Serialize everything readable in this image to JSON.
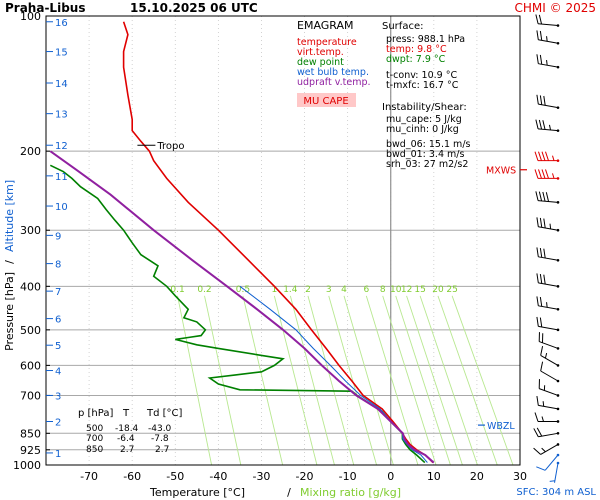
{
  "chart_data": {
    "type": "line",
    "station": "Praha-Libus",
    "date": "15.10.2025 06 UTC",
    "credit": "CHMI © 2025",
    "diagram_label": "EMAGRAM",
    "xlabel_temp": "Temperature [°C]",
    "xlabel_sep": "/",
    "xlabel_mix": "Mixing ratio [g/kg]",
    "ylabel_p": "Pressure [hPa]",
    "ylabel_sep": "/",
    "ylabel_alt": "Altitude [km]",
    "sfc_label": "SFC: 304 m ASL",
    "x_range": [
      -80,
      30
    ],
    "y_range": [
      100,
      1000
    ],
    "x_ticks": [
      -70,
      -60,
      -50,
      -40,
      -30,
      -20,
      -10,
      0,
      10,
      20,
      30
    ],
    "pressure_ticks": [
      100,
      200,
      300,
      400,
      500,
      600,
      700,
      850,
      925,
      1000
    ],
    "pressure_gridlines": [
      200,
      300,
      400,
      500,
      600,
      700,
      850,
      925
    ],
    "altitude_ticks": [
      {
        "km": "1",
        "p": 940
      },
      {
        "km": "2",
        "p": 800
      },
      {
        "km": "3",
        "p": 700
      },
      {
        "km": "4",
        "p": 616
      },
      {
        "km": "5",
        "p": 541
      },
      {
        "km": "6",
        "p": 472
      },
      {
        "km": "7",
        "p": 410
      },
      {
        "km": "8",
        "p": 356
      },
      {
        "km": "9",
        "p": 308
      },
      {
        "km": "10",
        "p": 265
      },
      {
        "km": "11",
        "p": 227
      },
      {
        "km": "12",
        "p": 194
      },
      {
        "km": "13",
        "p": 165
      },
      {
        "km": "14",
        "p": 141
      },
      {
        "km": "15",
        "p": 120
      },
      {
        "km": "16",
        "p": 103
      }
    ],
    "mixing_ratio_labels": [
      "0.1",
      "0.2",
      "0.5",
      "1",
      "1.4",
      "2",
      "3",
      "4",
      "6",
      "8",
      "10",
      "12",
      "15",
      "20",
      "25"
    ],
    "mixing_ratio_values": [
      0.1,
      0.2,
      0.5,
      1,
      1.4,
      2,
      3,
      4,
      6,
      8,
      10,
      12,
      15,
      20,
      25
    ],
    "legend": [
      {
        "label": "temperature",
        "color": "#e00000"
      },
      {
        "label": "virt.temp.",
        "color": "#e00000"
      },
      {
        "label": "dew point",
        "color": "#008000"
      },
      {
        "label": "wet bulb temp.",
        "color": "#1060d0"
      },
      {
        "label": "udpraft v.temp.",
        "color": "#9020a0"
      }
    ],
    "mu_cape_tag": "MU CAPE",
    "surface": {
      "title": "Surface:",
      "lines": [
        {
          "text": "press: 988.1 hPa",
          "color": "#000000"
        },
        {
          "text": "temp: 9.8 °C",
          "color": "#e00000"
        },
        {
          "text": "dwpt: 7.9 °C",
          "color": "#008000"
        }
      ],
      "tconv": "t-conv: 10.9 °C",
      "tmxfc": "t-mxfc: 16.7 °C"
    },
    "instability": {
      "title": "Instability/Shear:",
      "lines": [
        "mu_cape: 5 J/kg",
        "mu_cinh: 0 J/kg",
        "bwd_06: 15.1 m/s",
        "bwd_01: 3.4 m/s",
        "srh_03: 27 m2/s2"
      ]
    },
    "table": {
      "headers": [
        "p [hPa]",
        "T",
        "Td [°C]"
      ],
      "rows": [
        [
          "500",
          "-18.4",
          "-43.0"
        ],
        [
          "700",
          "-6.4",
          "-7.8"
        ],
        [
          "850",
          "2.7",
          "2.7"
        ]
      ]
    },
    "tropo_label": "Tropo",
    "tropo_p": 194,
    "tropo_t": -56,
    "mxws_label": "MXWS",
    "mxws_p": 220,
    "wbzl_label": "WBZL",
    "wbzl_p": 815,
    "series": [
      {
        "name": "temperature",
        "color": "#e00000",
        "points": [
          [
            9.8,
            988
          ],
          [
            8,
            950
          ],
          [
            6,
            925
          ],
          [
            4.5,
            900
          ],
          [
            3.5,
            875
          ],
          [
            2.7,
            850
          ],
          [
            0.5,
            800
          ],
          [
            -2,
            750
          ],
          [
            -6.4,
            700
          ],
          [
            -9,
            650
          ],
          [
            -12,
            600
          ],
          [
            -15,
            550
          ],
          [
            -18.4,
            500
          ],
          [
            -22,
            450
          ],
          [
            -27,
            400
          ],
          [
            -33,
            350
          ],
          [
            -40,
            300
          ],
          [
            -47,
            260
          ],
          [
            -52,
            230
          ],
          [
            -55,
            210
          ],
          [
            -56,
            200
          ],
          [
            -58,
            190
          ],
          [
            -60,
            180
          ],
          [
            -60,
            170
          ],
          [
            -61,
            150
          ],
          [
            -62,
            130
          ],
          [
            -62,
            120
          ],
          [
            -61,
            110
          ],
          [
            -62,
            103
          ]
        ]
      },
      {
        "name": "dew point",
        "color": "#008000",
        "points": [
          [
            7.9,
            988
          ],
          [
            6,
            950
          ],
          [
            4.5,
            925
          ],
          [
            3.5,
            900
          ],
          [
            2.7,
            875
          ],
          [
            2.7,
            850
          ],
          [
            0,
            800
          ],
          [
            -2,
            760
          ],
          [
            -7.8,
            700
          ],
          [
            -9,
            685
          ],
          [
            -35,
            680
          ],
          [
            -40,
            660
          ],
          [
            -42,
            640
          ],
          [
            -36,
            630
          ],
          [
            -30,
            620
          ],
          [
            -27,
            600
          ],
          [
            -25,
            580
          ],
          [
            -30,
            570
          ],
          [
            -40,
            550
          ],
          [
            -45,
            540
          ],
          [
            -50,
            525
          ],
          [
            -47,
            520
          ],
          [
            -44,
            515
          ],
          [
            -43,
            500
          ],
          [
            -45,
            480
          ],
          [
            -48,
            470
          ],
          [
            -47,
            450
          ],
          [
            -50,
            420
          ],
          [
            -52,
            400
          ],
          [
            -55,
            380
          ],
          [
            -54,
            360
          ],
          [
            -58,
            340
          ],
          [
            -60,
            320
          ],
          [
            -62,
            300
          ],
          [
            -64,
            285
          ],
          [
            -66,
            270
          ],
          [
            -68,
            255
          ],
          [
            -72,
            240
          ],
          [
            -74,
            230
          ],
          [
            -76,
            222
          ],
          [
            -79,
            215
          ]
        ]
      },
      {
        "name": "wet bulb temp.",
        "color": "#1060d0",
        "points": [
          [
            8.5,
            988
          ],
          [
            7,
            950
          ],
          [
            5,
            925
          ],
          [
            3.8,
            900
          ],
          [
            2.8,
            875
          ],
          [
            2.7,
            850
          ],
          [
            0,
            800
          ],
          [
            -2.5,
            750
          ],
          [
            -7,
            700
          ],
          [
            -10.5,
            650
          ],
          [
            -14,
            600
          ],
          [
            -18,
            550
          ],
          [
            -22,
            500
          ],
          [
            -28,
            450
          ],
          [
            -35,
            400
          ]
        ]
      },
      {
        "name": "udpraft v.temp.",
        "color": "#9020a0",
        "points": [
          [
            10,
            988
          ],
          [
            8,
            950
          ],
          [
            5.5,
            925
          ],
          [
            4,
            900
          ],
          [
            3.2,
            875
          ],
          [
            2.8,
            850
          ],
          [
            0,
            800
          ],
          [
            -3,
            750
          ],
          [
            -8,
            700
          ],
          [
            -12,
            650
          ],
          [
            -16,
            600
          ],
          [
            -20,
            550
          ],
          [
            -25,
            500
          ],
          [
            -31,
            450
          ],
          [
            -38,
            400
          ],
          [
            -46,
            350
          ],
          [
            -55,
            300
          ],
          [
            -65,
            250
          ],
          [
            -73,
            220
          ],
          [
            -79,
            200
          ]
        ]
      }
    ],
    "wind_barbs": [
      {
        "p": 990,
        "dir": 190,
        "speed_kt": 5
      },
      {
        "p": 950,
        "dir": 220,
        "speed_kt": 10
      },
      {
        "p": 900,
        "dir": 240,
        "speed_kt": 15
      },
      {
        "p": 850,
        "dir": 260,
        "speed_kt": 20
      },
      {
        "p": 800,
        "dir": 270,
        "speed_kt": 15
      },
      {
        "p": 750,
        "dir": 280,
        "speed_kt": 15
      },
      {
        "p": 700,
        "dir": 290,
        "speed_kt": 15
      },
      {
        "p": 650,
        "dir": 300,
        "speed_kt": 10
      },
      {
        "p": 600,
        "dir": 300,
        "speed_kt": 15
      },
      {
        "p": 550,
        "dir": 290,
        "speed_kt": 20
      },
      {
        "p": 500,
        "dir": 280,
        "speed_kt": 20
      },
      {
        "p": 450,
        "dir": 280,
        "speed_kt": 25
      },
      {
        "p": 400,
        "dir": 280,
        "speed_kt": 30
      },
      {
        "p": 350,
        "dir": 280,
        "speed_kt": 30
      },
      {
        "p": 300,
        "dir": 280,
        "speed_kt": 35
      },
      {
        "p": 260,
        "dir": 275,
        "speed_kt": 40
      },
      {
        "p": 230,
        "dir": 270,
        "speed_kt": 45
      },
      {
        "p": 210,
        "dir": 270,
        "speed_kt": 45
      },
      {
        "p": 180,
        "dir": 275,
        "speed_kt": 35
      },
      {
        "p": 160,
        "dir": 280,
        "speed_kt": 30
      },
      {
        "p": 130,
        "dir": 280,
        "speed_kt": 25
      },
      {
        "p": 115,
        "dir": 280,
        "speed_kt": 25
      },
      {
        "p": 105,
        "dir": 275,
        "speed_kt": 20
      }
    ]
  }
}
